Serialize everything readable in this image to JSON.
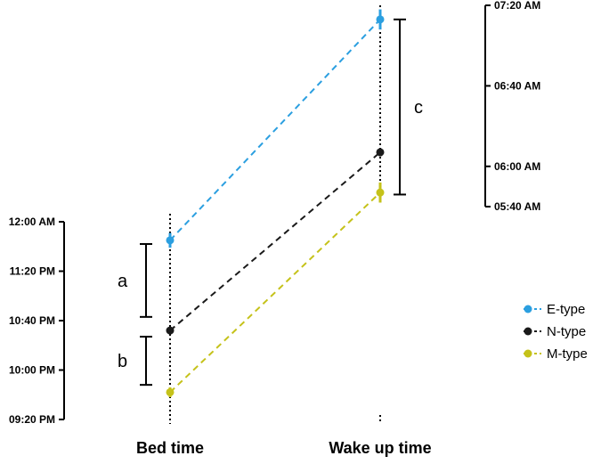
{
  "chart_data": {
    "type": "line",
    "categories": [
      "Bed time",
      "Wake up time"
    ],
    "left_axis": {
      "min_minutes": 1280,
      "max_minutes": 1440,
      "ticks": [
        {
          "minutes": 1440,
          "label": "12:00 AM"
        },
        {
          "minutes": 1400,
          "label": "11:20 PM"
        },
        {
          "minutes": 1360,
          "label": "10:40 PM"
        },
        {
          "minutes": 1320,
          "label": "10:00 PM"
        },
        {
          "minutes": 1280,
          "label": "09:20 PM"
        }
      ]
    },
    "right_axis": {
      "min_minutes": 340,
      "max_minutes": 440,
      "ticks": [
        {
          "minutes": 440,
          "label": "07:20 AM"
        },
        {
          "minutes": 400,
          "label": "06:40 AM"
        },
        {
          "minutes": 360,
          "label": "06:00 AM"
        },
        {
          "minutes": 340,
          "label": "05:40 AM"
        }
      ]
    },
    "series": [
      {
        "name": "E-type",
        "color": "#2b9fe0",
        "bed_time": {
          "minutes": 1425,
          "err": 6
        },
        "wake_time": {
          "minutes": 433,
          "err": 5
        }
      },
      {
        "name": "N-type",
        "color": "#1a1a1a",
        "bed_time": {
          "minutes": 1352,
          "err": 3
        },
        "wake_time": {
          "minutes": 367,
          "err": 2
        }
      },
      {
        "name": "M-type",
        "color": "#c5c21a",
        "bed_time": {
          "minutes": 1302,
          "err": 4
        },
        "wake_time": {
          "minutes": 347,
          "err": 5
        }
      }
    ],
    "brackets": [
      {
        "label": "a",
        "axis": "left",
        "from_minutes": 1422,
        "to_minutes": 1363
      },
      {
        "label": "b",
        "axis": "left",
        "from_minutes": 1347,
        "to_minutes": 1308
      },
      {
        "label": "c",
        "axis": "right",
        "from_minutes": 433,
        "to_minutes": 346
      }
    ],
    "legend_position": "right"
  }
}
